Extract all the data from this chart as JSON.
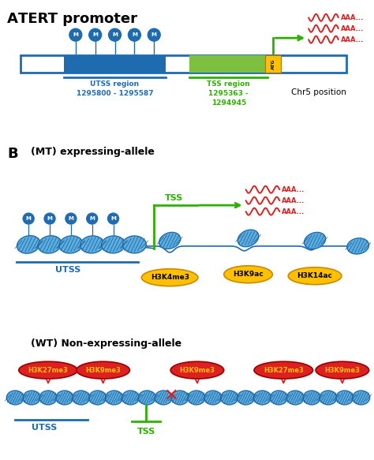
{
  "color_blue": "#1E6BB0",
  "color_green": "#2DB000",
  "color_red": "#DD2020",
  "color_yellow": "#FFC000",
  "color_nuc_face": "#5BAEE0",
  "color_nuc_edge": "#1E6BB0",
  "color_nuc_line": "#1A5490",
  "color_dark_blue": "#1A3E7A",
  "bg": "#ffffff",
  "utss_region": "UTSS region\n1295800 - 1295587",
  "tss_region": "TSS region\n1295363 -\n1294945",
  "chr5": "Chr5 position"
}
